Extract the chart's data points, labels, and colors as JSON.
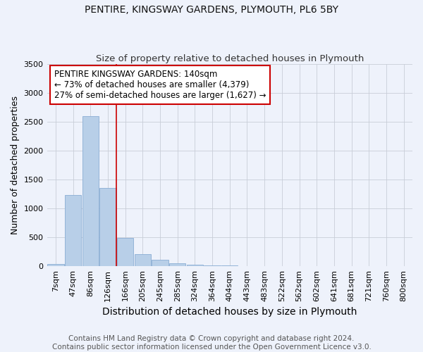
{
  "title": "PENTIRE, KINGSWAY GARDENS, PLYMOUTH, PL6 5BY",
  "subtitle": "Size of property relative to detached houses in Plymouth",
  "xlabel": "Distribution of detached houses by size in Plymouth",
  "ylabel": "Number of detached properties",
  "categories": [
    "7sqm",
    "47sqm",
    "86sqm",
    "126sqm",
    "166sqm",
    "205sqm",
    "245sqm",
    "285sqm",
    "324sqm",
    "364sqm",
    "404sqm",
    "443sqm",
    "483sqm",
    "522sqm",
    "562sqm",
    "602sqm",
    "641sqm",
    "681sqm",
    "721sqm",
    "760sqm",
    "800sqm"
  ],
  "values": [
    40,
    1230,
    2590,
    1350,
    490,
    200,
    110,
    50,
    25,
    10,
    5,
    3,
    2,
    0,
    0,
    0,
    0,
    0,
    0,
    0,
    0
  ],
  "bar_color": "#b8cfe8",
  "bar_edge_color": "#8aadd4",
  "ylim": [
    0,
    3500
  ],
  "yticks": [
    0,
    500,
    1000,
    1500,
    2000,
    2500,
    3000,
    3500
  ],
  "red_line_x": 3.5,
  "annotation_title": "PENTIRE KINGSWAY GARDENS: 140sqm",
  "annotation_line1": "← 73% of detached houses are smaller (4,379)",
  "annotation_line2": "27% of semi-detached houses are larger (1,627) →",
  "annotation_box_color": "#ffffff",
  "annotation_box_edge": "#cc0000",
  "vline_color": "#cc0000",
  "footnote1": "Contains HM Land Registry data © Crown copyright and database right 2024.",
  "footnote2": "Contains public sector information licensed under the Open Government Licence v3.0.",
  "bg_color": "#eef2fb",
  "title_fontsize": 10,
  "subtitle_fontsize": 9.5,
  "xlabel_fontsize": 10,
  "ylabel_fontsize": 9,
  "tick_fontsize": 8,
  "annotation_fontsize": 8.5,
  "footnote_fontsize": 7.5
}
